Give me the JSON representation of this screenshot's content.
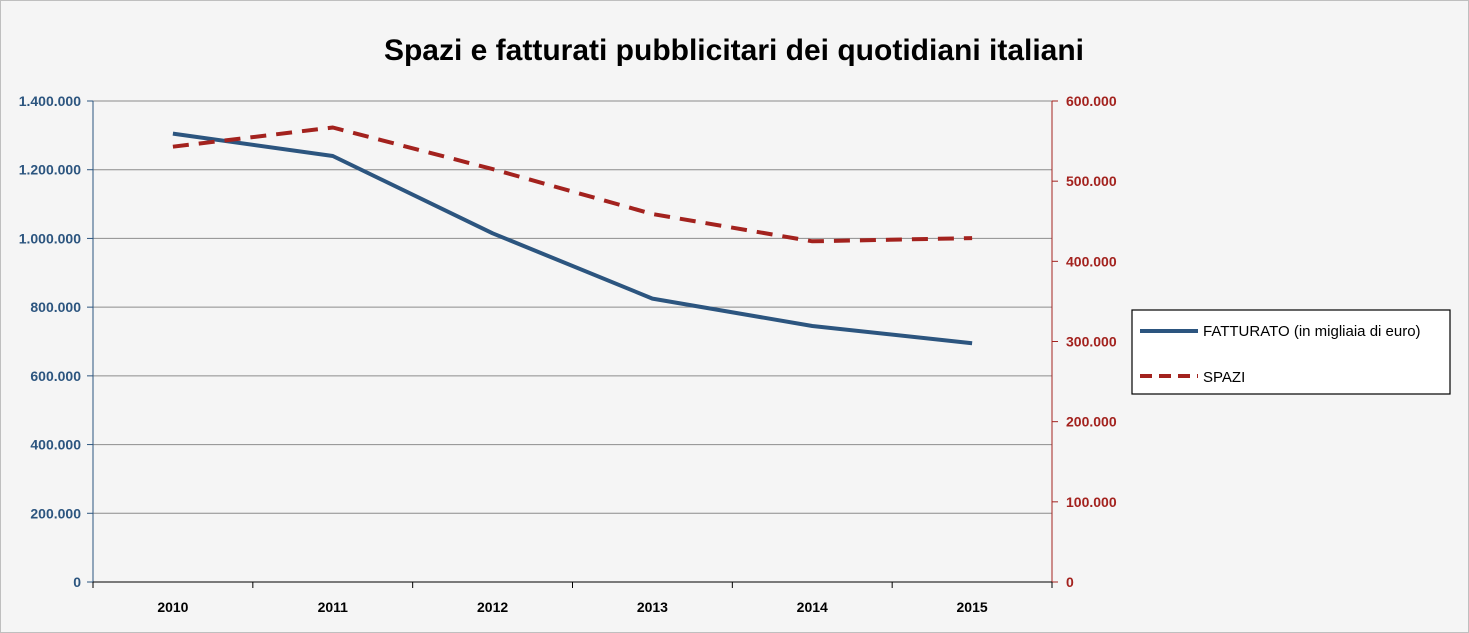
{
  "chart_data": {
    "type": "line",
    "title": "Spazi e fatturati pubblicitari dei quotidiani italiani",
    "categories": [
      "2010",
      "2011",
      "2012",
      "2013",
      "2014",
      "2015"
    ],
    "series": [
      {
        "name": "FATTURATO (in migliaia di euro)",
        "axis": "left",
        "color": "#2c557f",
        "line_style": "solid",
        "values": [
          1305000,
          1240000,
          1015000,
          825000,
          745000,
          695000
        ]
      },
      {
        "name": "SPAZI",
        "axis": "right",
        "color": "#a3221e",
        "line_style": "dashed",
        "values": [
          543000,
          567000,
          515000,
          459000,
          425000,
          429000
        ]
      }
    ],
    "y_left": {
      "min": 0,
      "max": 1400000,
      "step": 200000,
      "tick_labels": [
        "0",
        "200.000",
        "400.000",
        "600.000",
        "800.000",
        "1.000.000",
        "1.200.000",
        "1.400.000"
      ],
      "color": "#2c557f"
    },
    "y_right": {
      "min": 0,
      "max": 600000,
      "step": 100000,
      "tick_labels": [
        "0",
        "100.000",
        "200.000",
        "300.000",
        "400.000",
        "500.000",
        "600.000"
      ],
      "color": "#a3221e"
    },
    "grid": true,
    "legend_position": "right"
  }
}
